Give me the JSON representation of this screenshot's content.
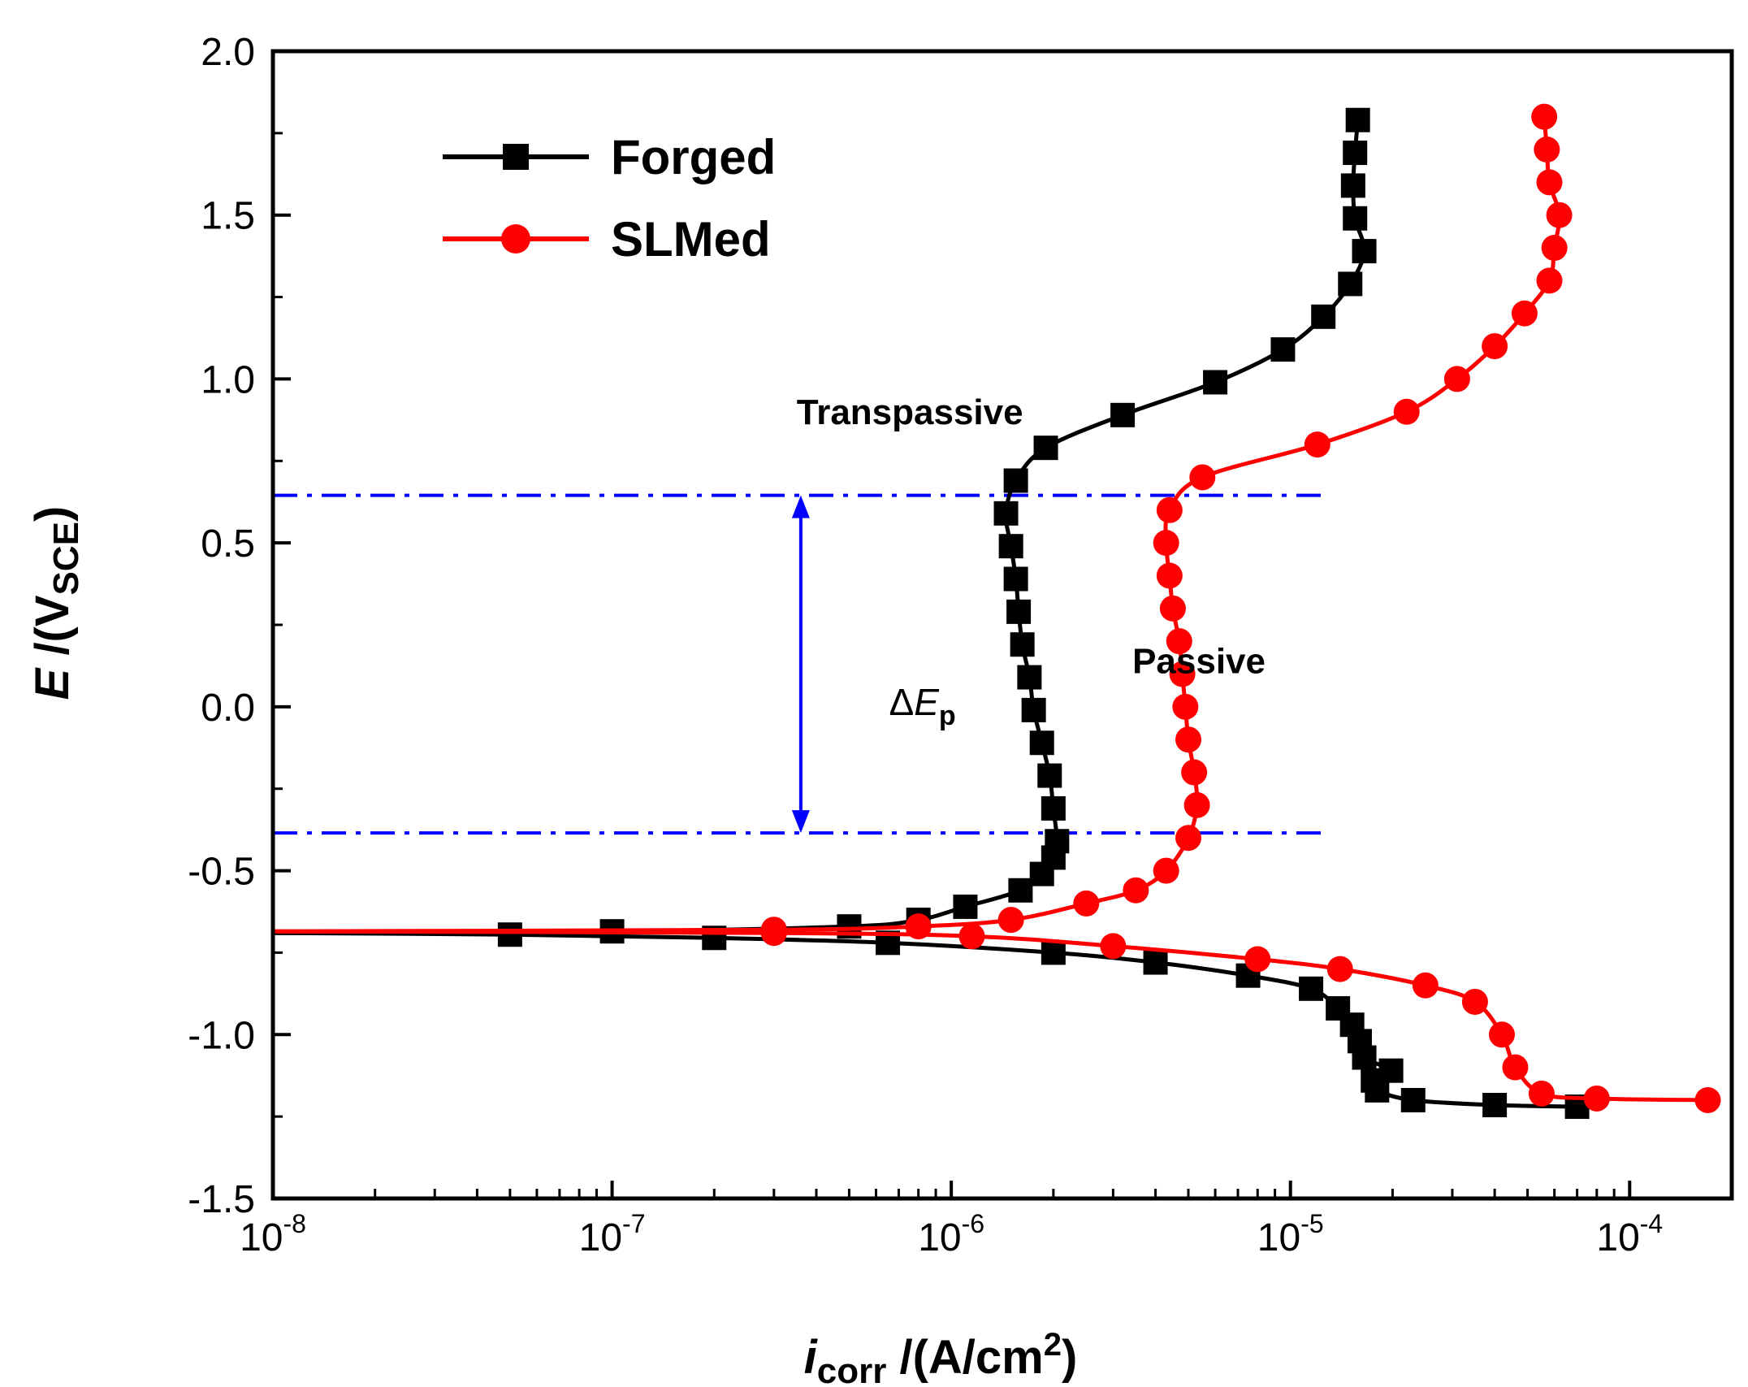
{
  "chart_data": {
    "type": "line",
    "title": "",
    "x_scale": "log",
    "xlim": [
      1e-08,
      0.0002
    ],
    "ylim": [
      -1.5,
      2.0
    ],
    "x_ticks": [
      {
        "base": "10",
        "exp": "-8"
      },
      {
        "base": "10",
        "exp": "-7"
      },
      {
        "base": "10",
        "exp": "-6"
      },
      {
        "base": "10",
        "exp": "-5"
      },
      {
        "base": "10",
        "exp": "-4"
      }
    ],
    "y_ticks": [
      "2.0",
      "1.5",
      "1.0",
      "0.5",
      "0.0",
      "-0.5",
      "-1.0",
      "-1.5"
    ],
    "xlabel": {
      "italic": "i",
      "sub": "corr",
      "rest": " /(A/cm",
      "sup": "2",
      "close": ")"
    },
    "ylabel": {
      "italic": "E",
      "rest": " /(V",
      "sub": "SCE",
      "close": ")"
    },
    "legend": {
      "position": "top-left"
    },
    "series": [
      {
        "name": "Forged",
        "color": "#000000",
        "marker": "square",
        "points": [
          [
            7e-05,
            -1.22
          ],
          [
            4e-05,
            -1.215
          ],
          [
            2.3e-05,
            -1.2
          ],
          [
            1.8e-05,
            -1.17
          ],
          [
            1.75e-05,
            -1.14
          ],
          [
            1.98e-05,
            -1.11
          ],
          [
            1.65e-05,
            -1.07
          ],
          [
            1.6e-05,
            -1.02
          ],
          [
            1.52e-05,
            -0.97
          ],
          [
            1.38e-05,
            -0.92
          ],
          [
            1.15e-05,
            -0.86
          ],
          [
            7.5e-06,
            -0.82
          ],
          [
            4e-06,
            -0.78
          ],
          [
            2e-06,
            -0.75
          ],
          [
            6.5e-07,
            -0.72
          ],
          [
            2e-07,
            -0.705
          ],
          [
            5e-08,
            -0.695
          ],
          [
            1e-08,
            -0.69
          ]
        ],
        "upper_points": [
          [
            1e-08,
            -0.69
          ],
          [
            1e-07,
            -0.685
          ],
          [
            5e-07,
            -0.67
          ],
          [
            8e-07,
            -0.65
          ],
          [
            1.1e-06,
            -0.61
          ],
          [
            1.6e-06,
            -0.56
          ],
          [
            1.85e-06,
            -0.51
          ],
          [
            2e-06,
            -0.46
          ],
          [
            2.05e-06,
            -0.41
          ],
          [
            2e-06,
            -0.31
          ],
          [
            1.95e-06,
            -0.21
          ],
          [
            1.85e-06,
            -0.11
          ],
          [
            1.75e-06,
            -0.01
          ],
          [
            1.7e-06,
            0.09
          ],
          [
            1.62e-06,
            0.19
          ],
          [
            1.58e-06,
            0.29
          ],
          [
            1.55e-06,
            0.39
          ],
          [
            1.5e-06,
            0.49
          ],
          [
            1.45e-06,
            0.59
          ],
          [
            1.55e-06,
            0.69
          ],
          [
            1.9e-06,
            0.79
          ],
          [
            3.2e-06,
            0.89
          ],
          [
            6e-06,
            0.99
          ],
          [
            9.5e-06,
            1.09
          ],
          [
            1.25e-05,
            1.19
          ],
          [
            1.5e-05,
            1.29
          ],
          [
            1.65e-05,
            1.39
          ],
          [
            1.55e-05,
            1.49
          ],
          [
            1.53e-05,
            1.59
          ],
          [
            1.55e-05,
            1.69
          ],
          [
            1.58e-05,
            1.79
          ]
        ]
      },
      {
        "name": "SLMed",
        "color": "#ff0000",
        "marker": "circle",
        "points": [
          [
            0.00017,
            -1.2
          ],
          [
            8e-05,
            -1.195
          ],
          [
            5.5e-05,
            -1.18
          ],
          [
            4.6e-05,
            -1.1
          ],
          [
            4.2e-05,
            -1.0
          ],
          [
            3.5e-05,
            -0.9
          ],
          [
            2.5e-05,
            -0.85
          ],
          [
            1.4e-05,
            -0.8
          ],
          [
            8e-06,
            -0.77
          ],
          [
            3e-06,
            -0.73
          ],
          [
            1.15e-06,
            -0.7
          ],
          [
            3e-07,
            -0.69
          ],
          [
            1e-08,
            -0.685
          ]
        ],
        "upper_points": [
          [
            1e-08,
            -0.685
          ],
          [
            3e-07,
            -0.68
          ],
          [
            8e-07,
            -0.67
          ],
          [
            1.5e-06,
            -0.65
          ],
          [
            2.5e-06,
            -0.6
          ],
          [
            3.5e-06,
            -0.56
          ],
          [
            4.3e-06,
            -0.5
          ],
          [
            5e-06,
            -0.4
          ],
          [
            5.3e-06,
            -0.3
          ],
          [
            5.2e-06,
            -0.2
          ],
          [
            5e-06,
            -0.1
          ],
          [
            4.9e-06,
            0.0
          ],
          [
            4.8e-06,
            0.1
          ],
          [
            4.7e-06,
            0.2
          ],
          [
            4.5e-06,
            0.3
          ],
          [
            4.4e-06,
            0.4
          ],
          [
            4.3e-06,
            0.5
          ],
          [
            4.4e-06,
            0.6
          ],
          [
            5.5e-06,
            0.7
          ],
          [
            1.2e-05,
            0.8
          ],
          [
            2.2e-05,
            0.9
          ],
          [
            3.1e-05,
            1.0
          ],
          [
            4e-05,
            1.1
          ],
          [
            4.9e-05,
            1.2
          ],
          [
            5.8e-05,
            1.3
          ],
          [
            6e-05,
            1.4
          ],
          [
            6.2e-05,
            1.5
          ],
          [
            5.8e-05,
            1.6
          ],
          [
            5.7e-05,
            1.7
          ],
          [
            5.6e-05,
            1.8
          ]
        ]
      }
    ],
    "reference_lines": [
      {
        "y": 0.645,
        "x_range": [
          1e-08,
          1.25e-05
        ],
        "style": "dash-dot",
        "color": "#0000ff"
      },
      {
        "y": -0.385,
        "x_range": [
          1e-08,
          1.25e-05
        ],
        "style": "dash-dot",
        "color": "#0000ff"
      }
    ],
    "delta_arrow": {
      "x": 3.6e-07,
      "y_top": 0.645,
      "y_bottom": -0.385,
      "color": "#0000ff"
    },
    "annotations": {
      "transpassive": {
        "text": "Transpassive",
        "x": 3.5e-07,
        "y": 0.9
      },
      "passive": {
        "text": "Passive",
        "x": 1.15e-05,
        "y": 0.14
      },
      "delta_e": {
        "symbol": "Δ",
        "italic": "E",
        "sub": "p",
        "x": 3.2e-07,
        "y": 0.0
      }
    }
  }
}
